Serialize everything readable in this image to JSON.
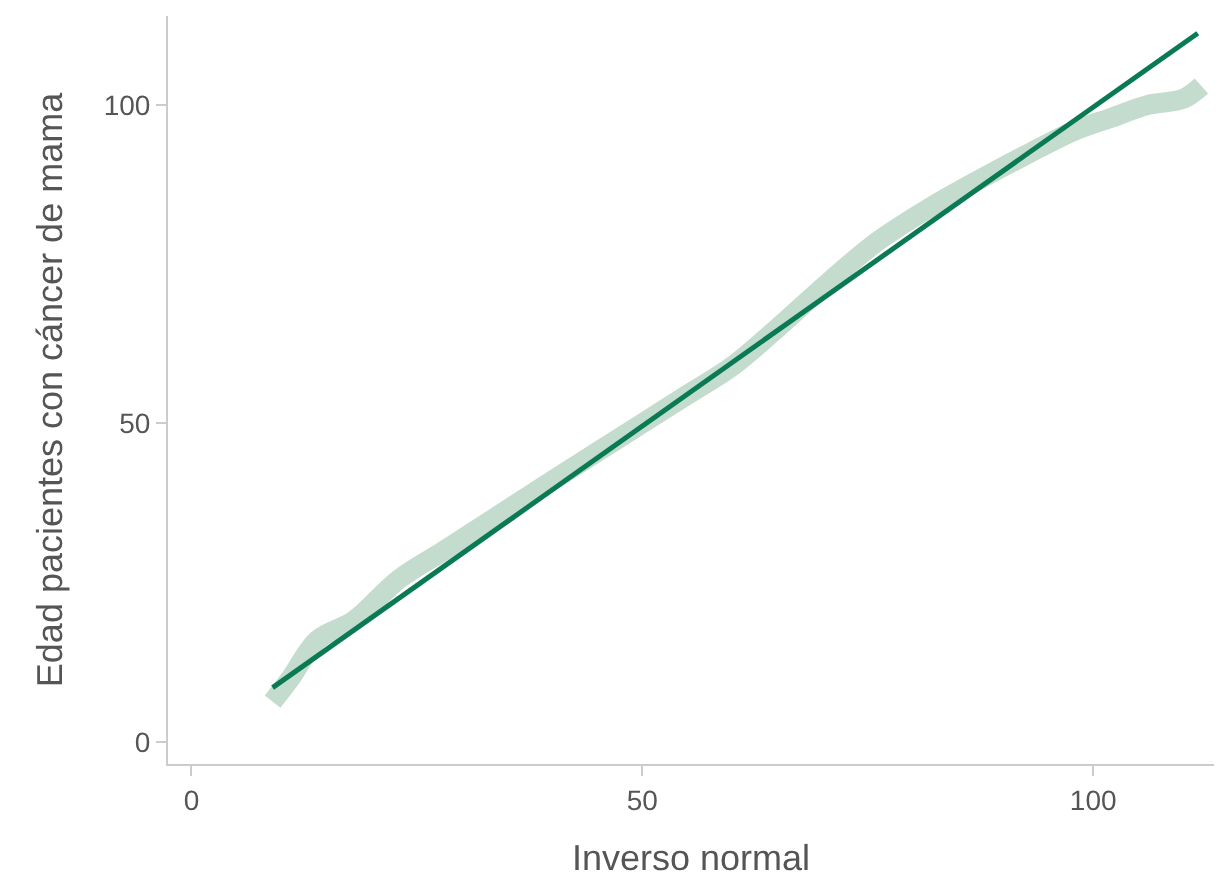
{
  "chart_data": {
    "type": "line",
    "xlabel": "Inverso normal",
    "ylabel": "Edad pacientes con cáncer de mama",
    "xlim": [
      -2.6,
      113.4
    ],
    "ylim": [
      -3.5,
      114
    ],
    "xticks": [
      0,
      50,
      100
    ],
    "yticks": [
      0,
      50,
      100
    ],
    "marker": "none",
    "line_style": "solid",
    "series": [
      {
        "color": "#c3dccd",
        "x": [
          9,
          11,
          14,
          18,
          23,
          28,
          34,
          40,
          45,
          50,
          55,
          60,
          65,
          71,
          76,
          82,
          87,
          93,
          98,
          102,
          106,
          110,
          112
        ],
        "values": [
          6.3,
          10,
          16,
          19,
          25.5,
          30,
          35.5,
          41,
          45.5,
          50,
          54.5,
          59,
          65,
          72.6,
          78.5,
          84,
          88,
          92.5,
          96,
          98,
          100,
          101,
          103
        ]
      },
      {
        "color": "#0a7a55",
        "x": [
          9,
          111.6
        ],
        "values": [
          8.5,
          111.3
        ]
      }
    ]
  }
}
